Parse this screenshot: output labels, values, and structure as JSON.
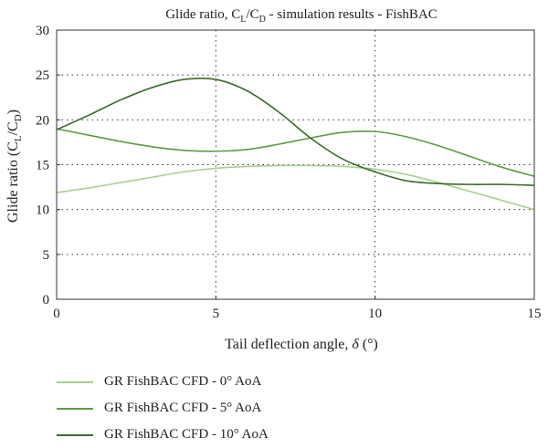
{
  "chart_data": {
    "type": "line",
    "title_parts": [
      "Glide ratio, C",
      "L",
      "/C",
      "D",
      " - simulation results - FishBAC"
    ],
    "xlabel_parts": [
      "Tail deflection angle, ",
      "δ",
      " (°)"
    ],
    "ylabel_parts": [
      "Glide ratio (C",
      "L",
      "/C",
      "D",
      ")"
    ],
    "xlim": [
      0,
      15
    ],
    "ylim": [
      0,
      30
    ],
    "xticks": [
      "0",
      "5",
      "10",
      "15"
    ],
    "yticks": [
      "0",
      "5",
      "10",
      "15",
      "20",
      "25",
      "30"
    ],
    "grid": true,
    "legend_position": "bottom",
    "series": [
      {
        "name": "GR FishBAC CFD - 0° AoA",
        "color": "#a8d08d",
        "x": [
          0,
          1,
          2,
          3,
          4,
          5,
          6,
          7,
          8,
          9,
          10,
          11,
          12,
          13,
          14,
          15
        ],
        "y": [
          11.9,
          12.4,
          13.0,
          13.6,
          14.2,
          14.6,
          14.8,
          14.9,
          14.9,
          14.8,
          14.5,
          13.9,
          13.0,
          12.0,
          11.0,
          10.0
        ]
      },
      {
        "name": "GR FishBAC CFD - 5° AoA",
        "color": "#5e9a44",
        "x": [
          0,
          1,
          2,
          3,
          4,
          5,
          6,
          7,
          8,
          9,
          10,
          11,
          12,
          13,
          14,
          15
        ],
        "y": [
          19.0,
          18.3,
          17.6,
          17.0,
          16.6,
          16.5,
          16.7,
          17.3,
          18.0,
          18.6,
          18.7,
          18.1,
          17.1,
          15.9,
          14.7,
          13.7
        ]
      },
      {
        "name": "GR FishBAC CFD - 10° AoA",
        "color": "#3d6a2c",
        "x": [
          0,
          1,
          2,
          3,
          4,
          5,
          6,
          7,
          8,
          9,
          10,
          11,
          12,
          13,
          14,
          15
        ],
        "y": [
          18.9,
          20.5,
          22.2,
          23.6,
          24.5,
          24.5,
          23.2,
          20.8,
          17.9,
          15.6,
          14.2,
          13.2,
          12.9,
          12.8,
          12.8,
          12.7
        ]
      }
    ]
  }
}
